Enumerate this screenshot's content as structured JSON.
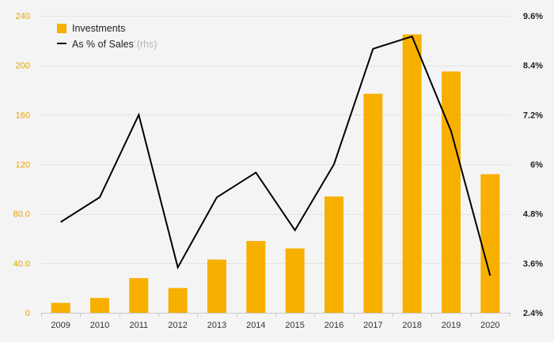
{
  "colors": {
    "background": "#f4f4f4",
    "bar": "#f7b000",
    "line": "#000000",
    "grid": "#e3e3e3",
    "left_tick": "#e8a400",
    "right_tick": "#222222"
  },
  "chart_data": {
    "type": "bar",
    "categories": [
      "2009",
      "2010",
      "2011",
      "2012",
      "2013",
      "2014",
      "2015",
      "2016",
      "2017",
      "2018",
      "2019",
      "2020"
    ],
    "series": [
      {
        "name": "Investments",
        "type": "bar",
        "axis": "left",
        "values": [
          8,
          12,
          28,
          20,
          43,
          58,
          52,
          94,
          177,
          225,
          195,
          112
        ]
      },
      {
        "name": "As % of Sales",
        "name_suffix": "(rhs)",
        "type": "line",
        "axis": "right",
        "values": [
          4.6,
          5.2,
          7.2,
          3.5,
          5.2,
          5.8,
          4.4,
          6.0,
          8.8,
          9.1,
          6.8,
          3.3
        ]
      }
    ],
    "left_axis": {
      "ylim": [
        0,
        240
      ],
      "ticks": [
        0,
        40,
        80,
        120,
        160,
        200,
        240
      ],
      "tick_labels": [
        "0",
        "40.0",
        "80.0",
        "120",
        "160",
        "200",
        "240"
      ]
    },
    "right_axis": {
      "ylim": [
        2.4,
        9.6
      ],
      "ticks": [
        2.4,
        3.6,
        4.8,
        6.0,
        7.2,
        8.4,
        9.6
      ],
      "tick_labels": [
        "2.4%",
        "3.6%",
        "4.8%",
        "6%",
        "7.2%",
        "8.4%",
        "9.6%"
      ]
    },
    "title": "",
    "xlabel": "",
    "ylabel": "",
    "grid": true,
    "legend_position": "top-left"
  }
}
